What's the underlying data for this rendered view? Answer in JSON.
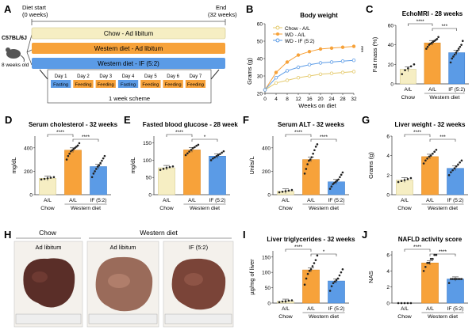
{
  "colors": {
    "chow": "#f6eec3",
    "wd": "#f7a23a",
    "if": "#5b9be6",
    "chow_stroke": "#cfc487",
    "grey": "#999999"
  },
  "panelA": {
    "letter": "A",
    "diet_start": "Diet start",
    "diet_start_sub": "(0 weeks)",
    "end": "End",
    "end_sub": "(32 weeks)",
    "mouse_strain": "C57BL/6J",
    "mouse_age": "8 weeks old",
    "bars": [
      "Chow - Ad libitum",
      "Western diet - Ad libitum",
      "Western diet - IF (5:2)"
    ],
    "days": [
      "Day 1",
      "Day 2",
      "Day 3",
      "Day 4",
      "Day 5",
      "Day 6",
      "Day 7"
    ],
    "day_states": [
      "Fasting",
      "Feeding",
      "Feeding",
      "Fasting",
      "Feeding",
      "Feeding",
      "Feeding"
    ],
    "scheme": "1 week scheme"
  },
  "panelB": {
    "letter": "B",
    "chart_data": {
      "type": "line",
      "title": "Body weight",
      "xlabel": "Weeks on diet",
      "ylabel": "Grams (g)",
      "x": [
        0,
        4,
        8,
        12,
        16,
        20,
        24,
        28,
        32
      ],
      "xticks": [
        "0",
        "4",
        "8",
        "12",
        "16",
        "20",
        "24",
        "28",
        "32"
      ],
      "yticks": [
        "20",
        "30",
        "40",
        "50",
        "60"
      ],
      "ylim": [
        20,
        60
      ],
      "series": [
        {
          "name": "Chow - A/L",
          "values": [
            22,
            26,
            27.5,
            29,
            30,
            31,
            31.5,
            32,
            32.5
          ]
        },
        {
          "name": "WD - A/L",
          "values": [
            22,
            32,
            38,
            42,
            44,
            45.5,
            46,
            46.5,
            47
          ]
        },
        {
          "name": "WD - IF (5:2)",
          "values": [
            22,
            29,
            33,
            35,
            36.5,
            37.5,
            38,
            38.5,
            39
          ]
        }
      ],
      "annotation": "***"
    }
  },
  "panelC": {
    "letter": "C",
    "title": "EchoMRI - 28 weeks",
    "ylabel": "Fat mass (%)",
    "yticks": [
      "0",
      "20",
      "40",
      "60"
    ],
    "ylim": [
      0,
      60
    ],
    "values": [
      15,
      42,
      32
    ],
    "points": [
      [
        10,
        14,
        16,
        18,
        20
      ],
      [
        36,
        38,
        40,
        41,
        42,
        43,
        44,
        45,
        46,
        48
      ],
      [
        22,
        26,
        28,
        30,
        32,
        34,
        36,
        38,
        40,
        44
      ]
    ],
    "sig": [
      "****",
      "***"
    ]
  },
  "panelD": {
    "letter": "D",
    "title": "Serum cholesterol - 32 weeks",
    "ylabel": "mg/dL",
    "yticks": [
      "0",
      "200",
      "400"
    ],
    "ylim": [
      0,
      500
    ],
    "values": [
      140,
      380,
      240
    ],
    "points": [
      [
        130,
        135,
        140,
        145,
        150
      ],
      [
        300,
        330,
        350,
        370,
        380,
        390,
        400,
        410,
        420,
        440
      ],
      [
        150,
        180,
        200,
        220,
        240,
        250,
        270,
        290,
        310,
        330
      ]
    ],
    "sig": [
      "****",
      "****"
    ]
  },
  "panelE": {
    "letter": "E",
    "title": "Fasted blood glucose - 28 weeks",
    "ylabel": "mg/dL",
    "yticks": [
      "0",
      "50",
      "100",
      "150"
    ],
    "ylim": [
      0,
      170
    ],
    "values": [
      78,
      130,
      112
    ],
    "points": [
      [
        72,
        75,
        78,
        80,
        82
      ],
      [
        115,
        120,
        125,
        130,
        135,
        138,
        142,
        145
      ],
      [
        100,
        105,
        108,
        112,
        115,
        118,
        122,
        126
      ]
    ],
    "sig": [
      "****",
      "*"
    ]
  },
  "panelF": {
    "letter": "F",
    "title": "Serum ALT - 32 weeks",
    "ylabel": "Units/L",
    "yticks": [
      "0",
      "200",
      "400"
    ],
    "ylim": [
      0,
      500
    ],
    "values": [
      30,
      300,
      110
    ],
    "points": [
      [
        20,
        25,
        30,
        35,
        40
      ],
      [
        180,
        220,
        260,
        290,
        300,
        320,
        350,
        380,
        410,
        430
      ],
      [
        50,
        70,
        90,
        100,
        110,
        120,
        130,
        150,
        170,
        190
      ]
    ],
    "sig": [
      "****",
      "****"
    ]
  },
  "panelG": {
    "letter": "G",
    "title": "Liver weight - 32 weeks",
    "ylabel": "Grams (g)",
    "yticks": [
      "0",
      "2",
      "4",
      "6"
    ],
    "ylim": [
      0,
      6
    ],
    "values": [
      1.5,
      3.9,
      2.7
    ],
    "points": [
      [
        1.3,
        1.4,
        1.5,
        1.6,
        1.7
      ],
      [
        3.2,
        3.5,
        3.7,
        3.9,
        4.0,
        4.2,
        4.4,
        4.6
      ],
      [
        2.0,
        2.3,
        2.5,
        2.7,
        2.9,
        3.1,
        3.3,
        3.5
      ]
    ],
    "sig": [
      "****",
      "***"
    ]
  },
  "panelH": {
    "letter": "H",
    "chow_label": "Chow",
    "wd_label": "Western diet",
    "sub_labels": [
      "Ad libitum",
      "Ad libitum",
      "IF (5:2)"
    ]
  },
  "panelI": {
    "letter": "I",
    "title": "Liver triglycerides - 32 weeks",
    "ylabel": "µg/mg of liver",
    "yticks": [
      "0",
      "50",
      "100",
      "150"
    ],
    "ylim": [
      0,
      170
    ],
    "values": [
      6,
      108,
      72
    ],
    "points": [
      [
        3,
        5,
        6,
        8,
        9
      ],
      [
        60,
        80,
        95,
        105,
        110,
        120,
        130,
        140,
        155
      ],
      [
        40,
        55,
        65,
        70,
        75,
        80,
        90,
        100,
        110
      ]
    ],
    "sig": [
      "****",
      "*"
    ]
  },
  "panelJ": {
    "letter": "J",
    "title": "NAFLD activity score",
    "ylabel": "NAS",
    "yticks": [
      "0",
      "2",
      "4",
      "6"
    ],
    "ylim": [
      0,
      6.5
    ],
    "values": [
      0,
      5,
      3
    ],
    "points": [
      [
        0,
        0,
        0,
        0,
        0
      ],
      [
        4,
        4.5,
        5,
        5,
        5.5,
        5.5,
        6,
        6
      ],
      [
        2.5,
        3,
        3,
        3,
        3,
        3,
        3,
        3
      ]
    ],
    "sig": [
      "****",
      "****"
    ]
  },
  "xaxis": {
    "cats": [
      "A/L",
      "A/L",
      "IF (5:2)"
    ],
    "group1": "Chow",
    "group2": "Western diet"
  }
}
